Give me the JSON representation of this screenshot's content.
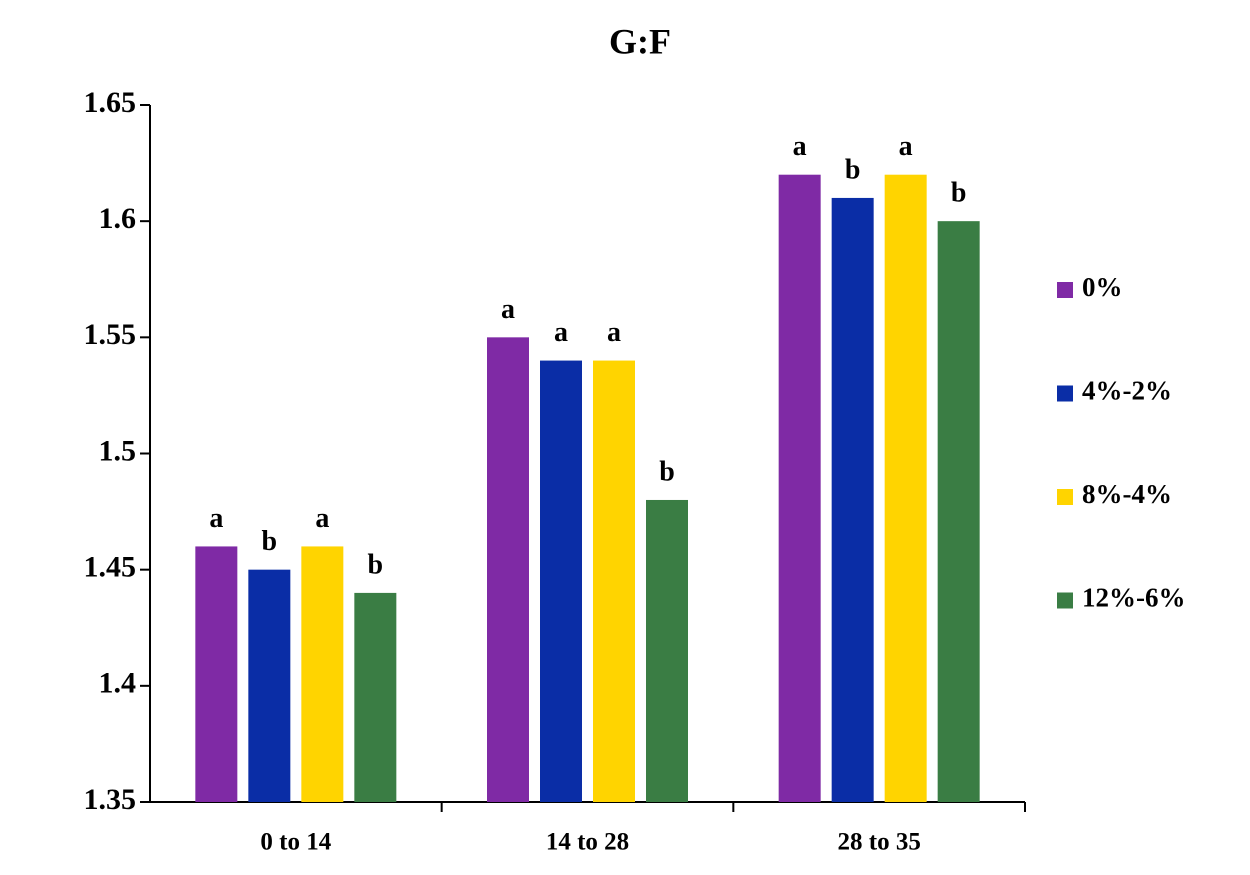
{
  "chart_data": {
    "type": "bar",
    "title": "G:F",
    "categories": [
      "0 to 14",
      "14 to 28",
      "28 to 35"
    ],
    "series": [
      {
        "name": "0%",
        "color": "#7f2aa5",
        "values": [
          1.46,
          1.55,
          1.62
        ],
        "letters": [
          "a",
          "a",
          "a"
        ]
      },
      {
        "name": "4%-2%",
        "color": "#0a2da6",
        "values": [
          1.45,
          1.54,
          1.61
        ],
        "letters": [
          "b",
          "a",
          "b"
        ]
      },
      {
        "name": "8%-4%",
        "color": "#ffd400",
        "values": [
          1.46,
          1.54,
          1.62
        ],
        "letters": [
          "a",
          "a",
          "a"
        ]
      },
      {
        "name": "12%-6%",
        "color": "#3a7d44",
        "values": [
          1.44,
          1.48,
          1.6
        ],
        "letters": [
          "b",
          "b",
          "b"
        ]
      }
    ],
    "ylim": [
      1.35,
      1.65
    ],
    "yticks": [
      1.35,
      1.4,
      1.45,
      1.5,
      1.55,
      1.6,
      1.65
    ],
    "grid": false,
    "legend": "right"
  }
}
